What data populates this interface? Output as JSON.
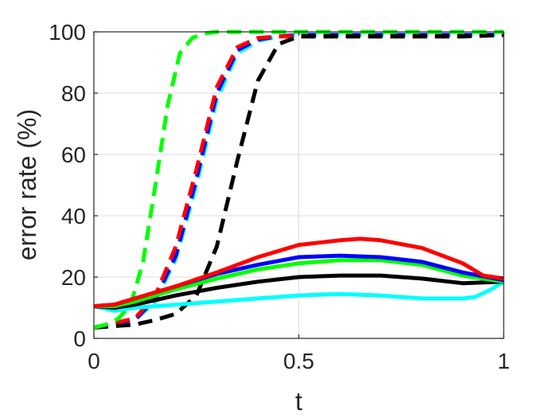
{
  "chart_data": {
    "type": "line",
    "title": "",
    "xlabel": "t",
    "ylabel": "error rate (%)",
    "xlim": [
      0,
      1
    ],
    "ylim": [
      0,
      100
    ],
    "xticks": [
      0,
      0.5,
      1
    ],
    "xtick_labels": [
      "0",
      "0.5",
      "1"
    ],
    "yticks": [
      0,
      20,
      40,
      60,
      80,
      100
    ],
    "ytick_labels": [
      "0",
      "20",
      "40",
      "60",
      "80",
      "100"
    ],
    "grid": true,
    "legend": "none",
    "series": [
      {
        "color": "#00ffff",
        "style": "dashed",
        "x": [
          0,
          0.05,
          0.1,
          0.15,
          0.2,
          0.25,
          0.3,
          0.35,
          0.4,
          0.45,
          0.5,
          0.6,
          0.7,
          0.8,
          0.9,
          1.0
        ],
        "y": [
          3.5,
          5,
          6,
          12,
          26,
          50,
          78,
          93,
          97,
          98.5,
          99,
          99,
          99,
          99,
          99,
          99
        ]
      },
      {
        "color": "#0000ff",
        "style": "dashed",
        "x": [
          0,
          0.05,
          0.1,
          0.15,
          0.2,
          0.25,
          0.3,
          0.35,
          0.4,
          0.45,
          0.5,
          0.6,
          0.7,
          0.8,
          0.9,
          1.0
        ],
        "y": [
          3.5,
          5,
          6,
          13,
          27,
          52,
          80,
          94,
          97.5,
          98.5,
          99,
          99,
          99,
          99,
          99,
          99
        ]
      },
      {
        "color": "#ff0000",
        "style": "dashed",
        "x": [
          0,
          0.05,
          0.1,
          0.15,
          0.2,
          0.25,
          0.3,
          0.35,
          0.4,
          0.45,
          0.5,
          0.6,
          0.7,
          0.8,
          0.9,
          1.0
        ],
        "y": [
          3.5,
          5,
          6.5,
          14,
          30,
          55,
          82,
          95,
          98,
          98.5,
          98.5,
          98.5,
          98.5,
          98.5,
          98.5,
          99
        ]
      },
      {
        "color": "#000000",
        "style": "dashed",
        "x": [
          0,
          0.05,
          0.1,
          0.15,
          0.2,
          0.25,
          0.3,
          0.35,
          0.4,
          0.45,
          0.5,
          0.6,
          0.7,
          0.8,
          0.9,
          1.0
        ],
        "y": [
          3.5,
          4,
          4.5,
          6,
          8,
          14,
          30,
          58,
          84,
          96,
          98.5,
          98.5,
          98.5,
          98.5,
          98.5,
          99
        ]
      },
      {
        "color": "#00ff00",
        "style": "dashed",
        "x": [
          0,
          0.03,
          0.06,
          0.09,
          0.12,
          0.15,
          0.18,
          0.21,
          0.24,
          0.27,
          0.3,
          0.4,
          0.5,
          0.6,
          0.7,
          0.8,
          0.9,
          1.0
        ],
        "y": [
          3.5,
          4.5,
          6.5,
          11,
          25,
          50,
          76,
          93,
          98,
          99.5,
          100,
          100,
          100,
          100,
          100,
          100,
          100,
          100
        ]
      },
      {
        "color": "#00ffff",
        "style": "solid",
        "x": [
          0,
          0.05,
          0.1,
          0.2,
          0.3,
          0.4,
          0.5,
          0.6,
          0.7,
          0.8,
          0.9,
          0.93,
          0.97,
          1.0
        ],
        "y": [
          10.5,
          9,
          10,
          11,
          12,
          13,
          14,
          14.5,
          14,
          13,
          13,
          13.5,
          16,
          18.5
        ]
      },
      {
        "color": "#000000",
        "style": "solid",
        "x": [
          0,
          0.05,
          0.1,
          0.2,
          0.3,
          0.4,
          0.5,
          0.6,
          0.7,
          0.8,
          0.9,
          1.0
        ],
        "y": [
          10.5,
          10,
          11,
          14,
          16.5,
          18.5,
          20,
          20.5,
          20.5,
          19.5,
          18,
          18.5
        ]
      },
      {
        "color": "#00ff00",
        "style": "solid",
        "x": [
          0,
          0.05,
          0.1,
          0.2,
          0.3,
          0.4,
          0.5,
          0.6,
          0.7,
          0.8,
          0.9,
          1.0
        ],
        "y": [
          10.5,
          10.5,
          12,
          16,
          19.5,
          22.5,
          24.5,
          25.5,
          25.5,
          24,
          20.5,
          18.5
        ]
      },
      {
        "color": "#0000ff",
        "style": "solid",
        "x": [
          0,
          0.05,
          0.1,
          0.2,
          0.3,
          0.4,
          0.5,
          0.6,
          0.7,
          0.8,
          0.9,
          1.0
        ],
        "y": [
          10.5,
          11,
          13,
          17,
          21,
          24,
          26.5,
          27,
          26.5,
          25,
          21.5,
          19
        ]
      },
      {
        "color": "#ff0000",
        "style": "solid",
        "x": [
          0,
          0.05,
          0.1,
          0.2,
          0.3,
          0.4,
          0.5,
          0.6,
          0.65,
          0.7,
          0.8,
          0.9,
          0.95,
          1.0
        ],
        "y": [
          10.5,
          11,
          13,
          17,
          21.5,
          26.5,
          30.5,
          32,
          32.5,
          32,
          29.5,
          24.5,
          20.5,
          19.5
        ]
      }
    ]
  }
}
